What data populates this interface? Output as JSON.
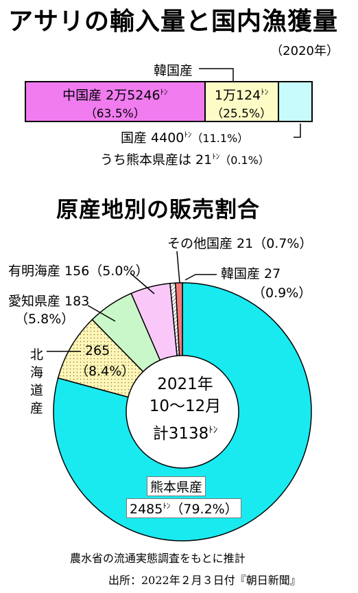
{
  "import": {
    "title": "アサリの輸入量と国内漁獲量",
    "year": "（2020年）",
    "china": {
      "name_value": "中国産 2万5246",
      "unit": "ﾄﾝ",
      "pct": "（63.5%）"
    },
    "korea": {
      "label": "韓国産",
      "value": "1万124",
      "unit": "ﾄﾝ",
      "pct": "（25.5%）"
    },
    "domestic": {
      "label": "国産 4400",
      "unit": "ﾄﾝ",
      "pct": "（11.1%）"
    },
    "kumamoto_note": {
      "label": "うち熊本県産は 21",
      "unit": "ﾄﾝ",
      "pct": "（0.1%）"
    }
  },
  "sales": {
    "title": "原産地別の販売割合",
    "center": {
      "line1": "2021年",
      "line2": "10〜12月",
      "line3": "計3138",
      "unit": "ﾄﾝ"
    },
    "labels": {
      "other": "その他国産 21（0.7%）",
      "korea": "韓国産 27",
      "korea_pct": "（0.9%）",
      "ariake": "有明海産 156（5.0%）",
      "aichi": "愛知県産 183",
      "aichi_pct": "（5.8%）",
      "hokkaido": [
        "北",
        "海",
        "道",
        "産"
      ],
      "hokkaido_value": "265",
      "hokkaido_pct": "（8.4%）",
      "kumamoto_name": "熊本県産",
      "kumamoto_value": "2485",
      "kumamoto_unit": "ﾄﾝ",
      "kumamoto_pct": "（79.2%）"
    }
  },
  "footer": {
    "note": "農水省の流通実態調査をもとに推計",
    "source": "出所：2022年２月３日付『朝日新聞』"
  },
  "chart_data": [
    {
      "type": "bar",
      "title": "アサリの輸入量と国内漁獲量",
      "subtitle": "（2020年）",
      "categories": [
        "中国産",
        "韓国産",
        "国産"
      ],
      "values": [
        25246,
        10124,
        4400
      ],
      "percent": [
        63.5,
        25.5,
        11.1
      ],
      "unit": "トン",
      "stacked": true
    },
    {
      "type": "pie",
      "title": "原産地別の販売割合",
      "donut": true,
      "categories": [
        "熊本県産",
        "北海道産",
        "愛知県産",
        "有明海産",
        "その他国産",
        "韓国産"
      ],
      "values": [
        2485,
        265,
        183,
        156,
        21,
        27
      ],
      "percent": [
        79.2,
        8.4,
        5.8,
        5.0,
        0.7,
        0.9
      ],
      "colors": [
        "#19eaf0",
        "#fdf6b8",
        "#c9f7c9",
        "#f9c8f9",
        "#e6e6e6",
        "#f47a7a"
      ],
      "total": 3138,
      "unit": "トン"
    }
  ]
}
